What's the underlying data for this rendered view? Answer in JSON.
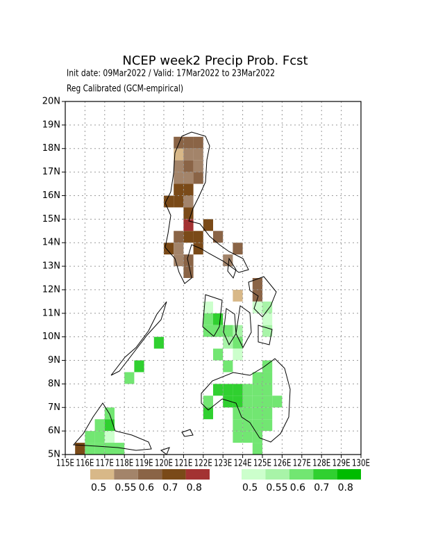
{
  "map": {
    "title": "NCEP week2 Precip Prob. Fcst",
    "subtitle": "Init date: 09Mar2022 / Valid: 17Mar2022 to 23Mar2022",
    "subtitle2": "Reg Calibrated (GCM-empirical)",
    "xlim": [
      115,
      130
    ],
    "ylim": [
      5,
      20
    ],
    "xticks": [
      {
        "value": 115,
        "label": "115E"
      },
      {
        "value": 116,
        "label": "116E"
      },
      {
        "value": 117,
        "label": "117E"
      },
      {
        "value": 118,
        "label": "118E"
      },
      {
        "value": 119,
        "label": "119E"
      },
      {
        "value": 120,
        "label": "120E"
      },
      {
        "value": 121,
        "label": "121E"
      },
      {
        "value": 122,
        "label": "122E"
      },
      {
        "value": 123,
        "label": "123E"
      },
      {
        "value": 124,
        "label": "124E"
      },
      {
        "value": 125,
        "label": "125E"
      },
      {
        "value": 126,
        "label": "126E"
      },
      {
        "value": 127,
        "label": "127E"
      },
      {
        "value": 128,
        "label": "128E"
      },
      {
        "value": 129,
        "label": "129E"
      },
      {
        "value": 130,
        "label": "130E"
      }
    ],
    "yticks": [
      {
        "value": 5,
        "label": "5N"
      },
      {
        "value": 6,
        "label": "6N"
      },
      {
        "value": 7,
        "label": "7N"
      },
      {
        "value": 8,
        "label": "8N"
      },
      {
        "value": 9,
        "label": "9N"
      },
      {
        "value": 10,
        "label": "10N"
      },
      {
        "value": 11,
        "label": "11N"
      },
      {
        "value": 12,
        "label": "12N"
      },
      {
        "value": 13,
        "label": "13N"
      },
      {
        "value": 14,
        "label": "14N"
      },
      {
        "value": 15,
        "label": "15N"
      },
      {
        "value": 16,
        "label": "16N"
      },
      {
        "value": 17,
        "label": "17N"
      },
      {
        "value": 18,
        "label": "18N"
      },
      {
        "value": 19,
        "label": "19N"
      },
      {
        "value": 20,
        "label": "20N"
      }
    ],
    "grid": true,
    "dry_legend": {
      "colors": [
        "#d8b888",
        "#a3846a",
        "#8a6446",
        "#7a4a18",
        "#a33232"
      ],
      "labels": [
        0.5,
        0.55,
        0.6,
        0.7,
        0.8
      ]
    },
    "wet_legend": {
      "colors": [
        "#ccffcc",
        "#a8f4a8",
        "#72e672",
        "#30d030",
        "#00bb00"
      ],
      "labels": [
        0.5,
        0.55,
        0.6,
        0.7,
        0.8
      ]
    },
    "dry_cells": [
      [
        120.5,
        18,
        0.6
      ],
      [
        121,
        18,
        0.6
      ],
      [
        121.5,
        18,
        0.6
      ],
      [
        120.5,
        17.5,
        0.5
      ],
      [
        121,
        17.5,
        0.55
      ],
      [
        121.5,
        17.5,
        0.55
      ],
      [
        120.5,
        17,
        0.55
      ],
      [
        121,
        17,
        0.6
      ],
      [
        121.5,
        17,
        0.55
      ],
      [
        120.5,
        16.5,
        0.55
      ],
      [
        121,
        16.5,
        0.55
      ],
      [
        121.5,
        16.5,
        0.6
      ],
      [
        120.5,
        16,
        0.7
      ],
      [
        121,
        16,
        0.7
      ],
      [
        120,
        15.5,
        0.7
      ],
      [
        120.5,
        15.5,
        0.7
      ],
      [
        121,
        15.5,
        0.55
      ],
      [
        121,
        15,
        0.7
      ],
      [
        121,
        14.5,
        0.8
      ],
      [
        122,
        14.5,
        0.7
      ],
      [
        120.5,
        14,
        0.6
      ],
      [
        121,
        14,
        0.7
      ],
      [
        121.5,
        14,
        0.7
      ],
      [
        122.5,
        14,
        0.6
      ],
      [
        120,
        13.5,
        0.7
      ],
      [
        120.5,
        13.5,
        0.55
      ],
      [
        121.5,
        13.5,
        0.7
      ],
      [
        123.5,
        13.5,
        0.6
      ],
      [
        120.5,
        13,
        0.55
      ],
      [
        121,
        13,
        0.6
      ],
      [
        123,
        13,
        0.55
      ],
      [
        121,
        12.5,
        0.6
      ],
      [
        124.5,
        12,
        0.6
      ],
      [
        123.5,
        11.5,
        0.5
      ],
      [
        124.5,
        11.5,
        0.6
      ],
      [
        115.5,
        5,
        0.7
      ]
    ],
    "wet_cells": [
      [
        122,
        11,
        0.5
      ],
      [
        124.5,
        11,
        0.5
      ],
      [
        125,
        11,
        0.55
      ],
      [
        122,
        10.5,
        0.6
      ],
      [
        122.5,
        10.5,
        0.7
      ],
      [
        125,
        10.5,
        0.5
      ],
      [
        122,
        10,
        0.6
      ],
      [
        122.5,
        10,
        0.6
      ],
      [
        123,
        10,
        0.6
      ],
      [
        123.5,
        10,
        0.55
      ],
      [
        125,
        10,
        0.55
      ],
      [
        119.5,
        9.5,
        0.7
      ],
      [
        123,
        9.5,
        0.55
      ],
      [
        123.5,
        9.5,
        0.6
      ],
      [
        122.5,
        9,
        0.6
      ],
      [
        123.5,
        9,
        0.5
      ],
      [
        118.5,
        8.5,
        0.7
      ],
      [
        123,
        8.5,
        0.6
      ],
      [
        125,
        8.5,
        0.6
      ],
      [
        118,
        8,
        0.6
      ],
      [
        124.5,
        8,
        0.6
      ],
      [
        125,
        8,
        0.6
      ],
      [
        122.5,
        7.5,
        0.7
      ],
      [
        123,
        7.5,
        0.7
      ],
      [
        123.5,
        7.5,
        0.7
      ],
      [
        124,
        7.5,
        0.6
      ],
      [
        124.5,
        7.5,
        0.6
      ],
      [
        125,
        7.5,
        0.6
      ],
      [
        122,
        7,
        0.6
      ],
      [
        123,
        7,
        0.7
      ],
      [
        123.5,
        7,
        0.7
      ],
      [
        124,
        7,
        0.6
      ],
      [
        124.5,
        7,
        0.6
      ],
      [
        125,
        7,
        0.6
      ],
      [
        125.5,
        7,
        0.6
      ],
      [
        117,
        6.5,
        0.6
      ],
      [
        122,
        6.5,
        0.7
      ],
      [
        123.5,
        6.5,
        0.6
      ],
      [
        124,
        6.5,
        0.6
      ],
      [
        124.5,
        6.5,
        0.6
      ],
      [
        125,
        6.5,
        0.6
      ],
      [
        116.5,
        6,
        0.6
      ],
      [
        117,
        6,
        0.7
      ],
      [
        123.5,
        6,
        0.6
      ],
      [
        124,
        6,
        0.6
      ],
      [
        124.5,
        6,
        0.6
      ],
      [
        125,
        6,
        0.6
      ],
      [
        116,
        5.5,
        0.6
      ],
      [
        116.5,
        5.5,
        0.6
      ],
      [
        117,
        5.5,
        0.5
      ],
      [
        123.5,
        5.5,
        0.6
      ],
      [
        124,
        5.5,
        0.6
      ],
      [
        124.5,
        5.5,
        0.6
      ],
      [
        116,
        5,
        0.6
      ],
      [
        116.5,
        5,
        0.6
      ],
      [
        117,
        5,
        0.6
      ],
      [
        117.5,
        5,
        0.6
      ],
      [
        124.5,
        5,
        0.6
      ]
    ]
  }
}
